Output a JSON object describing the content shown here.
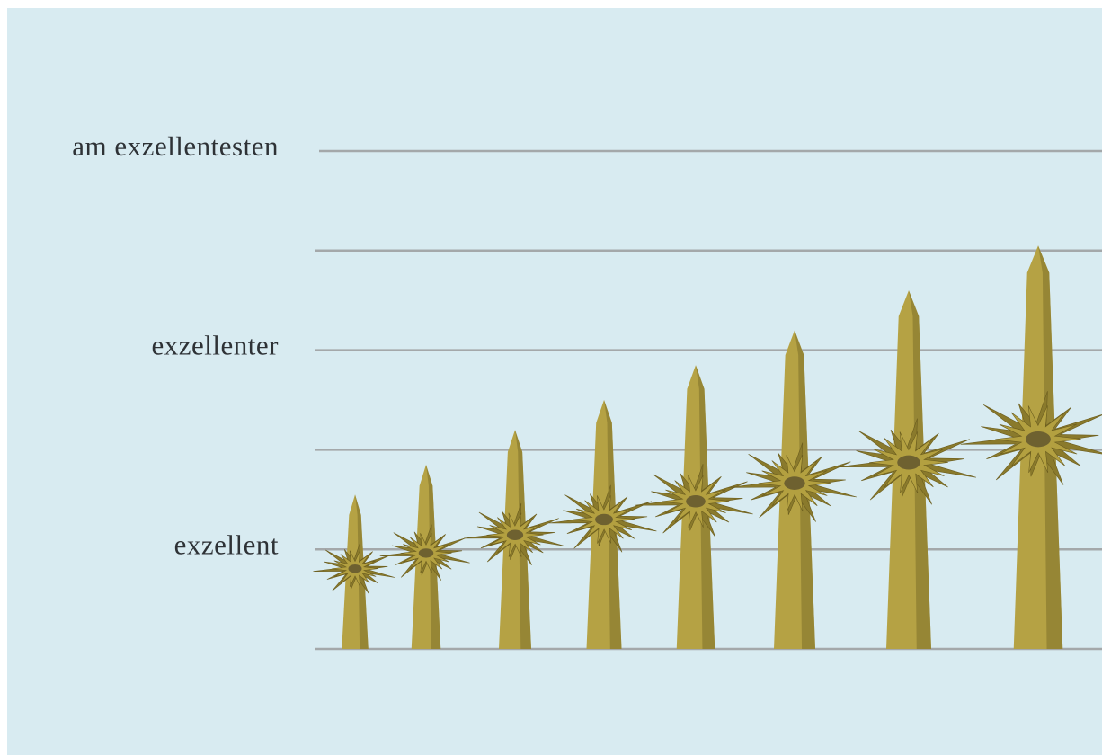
{
  "chart_data": {
    "type": "spire",
    "categories": [
      null,
      null,
      null,
      null,
      null,
      null,
      null,
      null
    ],
    "values": [
      1.55,
      1.85,
      2.2,
      2.5,
      2.85,
      3.2,
      3.6,
      4.05
    ],
    "color": "#b5a244",
    "ylim": [
      0,
      5
    ],
    "yticks": [
      {
        "value": 1,
        "label": "exzellent"
      },
      {
        "value": 3,
        "label": "exzellenter"
      },
      {
        "value": 5,
        "label": "am exzellentesten"
      }
    ],
    "minor_yticks": [
      0,
      2,
      4
    ],
    "grid": true
  }
}
